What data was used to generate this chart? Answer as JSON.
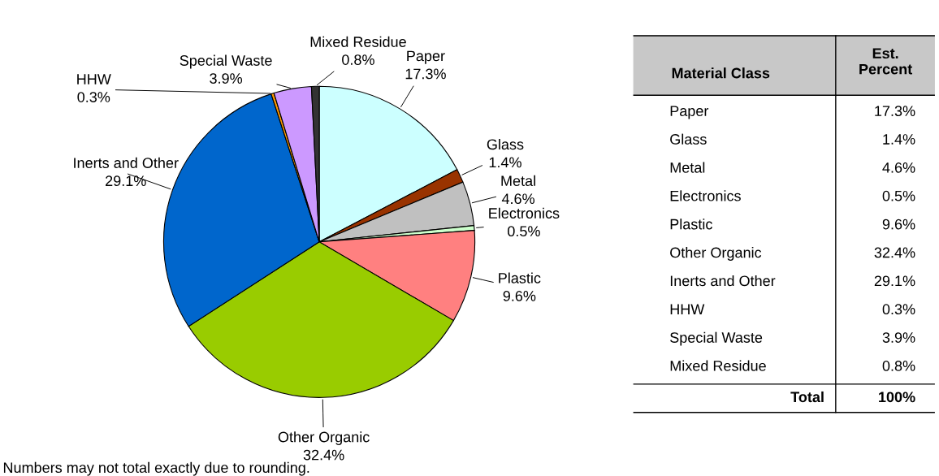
{
  "chart_data": {
    "type": "pie",
    "categories": [
      "Paper",
      "Glass",
      "Metal",
      "Electronics",
      "Plastic",
      "Other Organic",
      "Inerts and Other",
      "HHW",
      "Special Waste",
      "Mixed Residue"
    ],
    "values": [
      17.3,
      1.4,
      4.6,
      0.5,
      9.6,
      32.4,
      29.1,
      0.3,
      3.9,
      0.8
    ],
    "colors": [
      "#ccffff",
      "#993300",
      "#c0c0c0",
      "#ccffcc",
      "#ff8080",
      "#99cc00",
      "#0066cc",
      "#ff9900",
      "#cc99ff",
      "#333333"
    ],
    "value_labels": [
      "17.3%",
      "1.4%",
      "4.6%",
      "0.5%",
      "9.6%",
      "32.4%",
      "29.1%",
      "0.3%",
      "3.9%",
      "0.8%"
    ],
    "data_labels": true,
    "annotations": [
      "Material Class",
      "Est. Percent",
      "Total",
      "100%",
      "Numbers may not total exactly due to rounding."
    ]
  }
}
